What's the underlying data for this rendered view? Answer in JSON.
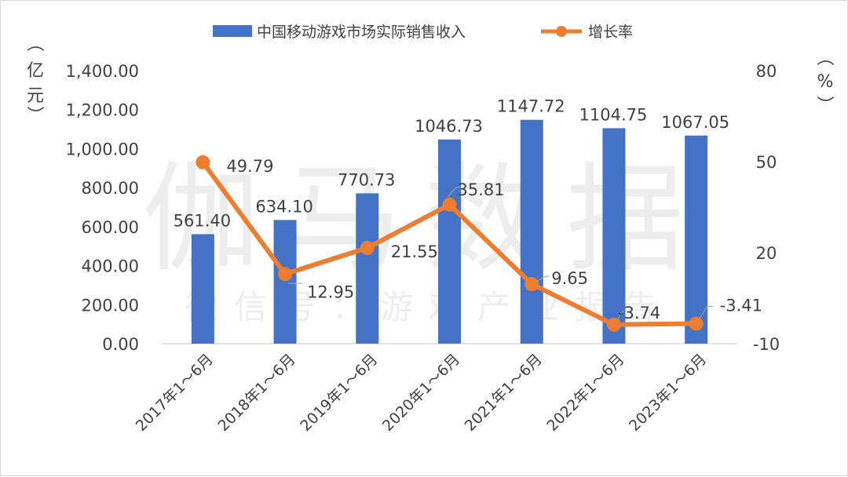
{
  "watermark": {
    "main": "伽马数据",
    "sub": "微信号：游戏产业报告"
  },
  "chart_data": {
    "type": "bar+line",
    "categories": [
      "2017年1～6月",
      "2018年1～6月",
      "2019年1～6月",
      "2020年1～6月",
      "2021年1～6月",
      "2022年1～6月",
      "2023年1～6月"
    ],
    "series": [
      {
        "name": "中国移动游戏市场实际销售收入",
        "type": "bar",
        "axis": "left",
        "color": "#4472C4",
        "values": [
          561.4,
          634.1,
          770.73,
          1046.73,
          1147.72,
          1104.75,
          1067.05
        ],
        "labels": [
          "561.40",
          "634.10",
          "770.73",
          "1046.73",
          "1147.72",
          "1104.75",
          "1067.05"
        ]
      },
      {
        "name": "增长率",
        "type": "line",
        "axis": "right",
        "color": "#ED7D31",
        "values": [
          49.79,
          12.95,
          21.55,
          35.81,
          9.65,
          -3.74,
          -3.41
        ],
        "labels": [
          "49.79",
          "12.95",
          "21.55",
          "35.81",
          "9.65",
          "-3.74",
          "-3.41"
        ]
      }
    ],
    "left_axis": {
      "unit_label": [
        "（",
        "亿",
        "元",
        "）"
      ],
      "ticks": [
        "0.00",
        "200.00",
        "400.00",
        "600.00",
        "800.00",
        "1,000.00",
        "1,200.00",
        "1,400.00"
      ],
      "range": [
        0,
        1400
      ]
    },
    "right_axis": {
      "unit_label": [
        "（",
        "%",
        "）"
      ],
      "ticks": [
        "-10",
        "20",
        "50",
        "80"
      ],
      "range": [
        -10,
        80
      ]
    },
    "legend_position": "top-center",
    "grid": false
  }
}
